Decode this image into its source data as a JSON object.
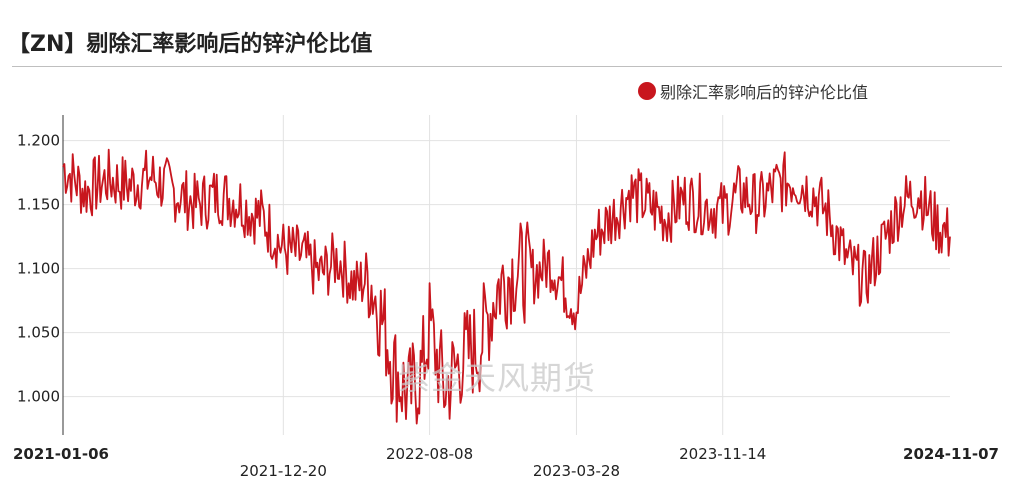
{
  "header": {
    "title": "【ZN】剔除汇率影响后的锌沪伦比值"
  },
  "watermark": "紫金天风期货",
  "colors": {
    "line": "#c8161e",
    "grid": "#e2e2e2",
    "rule": "#bfbfbf"
  },
  "chart_data": {
    "type": "line",
    "title": "",
    "xlabel": "",
    "ylabel": "",
    "ylim": [
      0.97,
      1.22
    ],
    "y_ticks": [
      "1.200",
      "1.150",
      "1.100",
      "1.050",
      "1.000"
    ],
    "x_ticks": [
      {
        "label": "2021-01-06",
        "bold": true,
        "row": 1
      },
      {
        "label": "2021-12-20",
        "bold": false,
        "row": 2
      },
      {
        "label": "2022-08-08",
        "bold": false,
        "row": 1
      },
      {
        "label": "2023-03-28",
        "bold": false,
        "row": 2
      },
      {
        "label": "2023-11-14",
        "bold": false,
        "row": 1
      },
      {
        "label": "2024-11-07",
        "bold": true,
        "row": 1
      }
    ],
    "series": [
      {
        "name": "剔除汇率影响后的锌沪伦比值",
        "x": [
          "2021-01-06",
          "2021-02-10",
          "2021-03-17",
          "2021-04-21",
          "2021-05-26",
          "2021-06-30",
          "2021-08-04",
          "2021-09-08",
          "2021-10-13",
          "2021-10-27",
          "2021-11-17",
          "2021-12-20",
          "2022-01-19",
          "2022-02-16",
          "2022-03-16",
          "2022-04-13",
          "2022-05-04",
          "2022-05-25",
          "2022-06-15",
          "2022-07-06",
          "2022-07-27",
          "2022-08-08",
          "2022-08-31",
          "2022-09-28",
          "2022-10-26",
          "2022-11-23",
          "2022-12-21",
          "2023-01-18",
          "2023-02-15",
          "2023-03-15",
          "2023-03-28",
          "2023-04-26",
          "2023-05-24",
          "2023-06-21",
          "2023-07-19",
          "2023-08-16",
          "2023-09-13",
          "2023-10-11",
          "2023-11-14",
          "2023-12-13",
          "2024-01-10",
          "2024-02-07",
          "2024-03-06",
          "2024-04-03",
          "2024-05-01",
          "2024-05-29",
          "2024-06-26",
          "2024-07-24",
          "2024-08-21",
          "2024-09-18",
          "2024-10-16",
          "2024-11-07"
        ],
        "values": [
          1.18,
          1.16,
          1.17,
          1.165,
          1.172,
          1.16,
          1.15,
          1.158,
          1.152,
          1.145,
          1.14,
          1.115,
          1.11,
          1.095,
          1.108,
          1.085,
          1.095,
          1.06,
          1.02,
          1.0,
          1.02,
          1.055,
          1.005,
          1.03,
          1.04,
          1.085,
          1.1,
          1.095,
          1.105,
          1.08,
          1.07,
          1.125,
          1.14,
          1.16,
          1.15,
          1.14,
          1.155,
          1.15,
          1.145,
          1.16,
          1.15,
          1.165,
          1.17,
          1.16,
          1.14,
          1.105,
          1.09,
          1.12,
          1.15,
          1.16,
          1.135,
          1.125
        ]
      }
    ],
    "grid": true,
    "legend_position": "top-right"
  }
}
